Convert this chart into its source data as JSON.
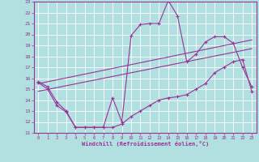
{
  "xlabel": "Windchill (Refroidissement éolien,°C)",
  "bg_color": "#b2dfdf",
  "grid_color": "#ffffff",
  "line_color": "#993399",
  "xlim": [
    -0.5,
    23.5
  ],
  "ylim": [
    11,
    23
  ],
  "xticks": [
    0,
    1,
    2,
    3,
    4,
    5,
    6,
    7,
    8,
    9,
    10,
    11,
    12,
    13,
    14,
    15,
    16,
    17,
    18,
    19,
    20,
    21,
    22,
    23
  ],
  "yticks": [
    11,
    12,
    13,
    14,
    15,
    16,
    17,
    18,
    19,
    20,
    21,
    22,
    23
  ],
  "curve1_x": [
    0,
    1,
    2,
    3,
    4,
    5,
    6,
    7,
    8,
    9,
    10,
    11,
    12,
    13,
    14,
    15,
    16,
    17,
    18,
    19,
    20,
    21,
    22,
    23
  ],
  "curve1_y": [
    15.7,
    15.2,
    13.8,
    13.0,
    11.5,
    11.5,
    11.5,
    11.5,
    14.2,
    12.0,
    19.9,
    20.9,
    21.0,
    21.0,
    23.1,
    21.7,
    17.5,
    18.2,
    19.3,
    19.8,
    19.8,
    19.2,
    17.0,
    15.2
  ],
  "curve2_x": [
    0,
    1,
    2,
    3,
    4,
    5,
    6,
    7,
    8,
    9,
    10,
    11,
    12,
    13,
    14,
    15,
    16,
    17,
    18,
    19,
    20,
    21,
    22,
    23
  ],
  "curve2_y": [
    15.6,
    15.0,
    13.5,
    12.9,
    11.5,
    11.5,
    11.5,
    11.5,
    11.5,
    11.8,
    12.5,
    13.0,
    13.5,
    14.0,
    14.2,
    14.3,
    14.5,
    15.0,
    15.5,
    16.5,
    17.0,
    17.5,
    17.7,
    14.8
  ],
  "line1_x": [
    0,
    23
  ],
  "line1_y": [
    15.5,
    19.5
  ],
  "line2_x": [
    0,
    23
  ],
  "line2_y": [
    14.8,
    18.7
  ]
}
